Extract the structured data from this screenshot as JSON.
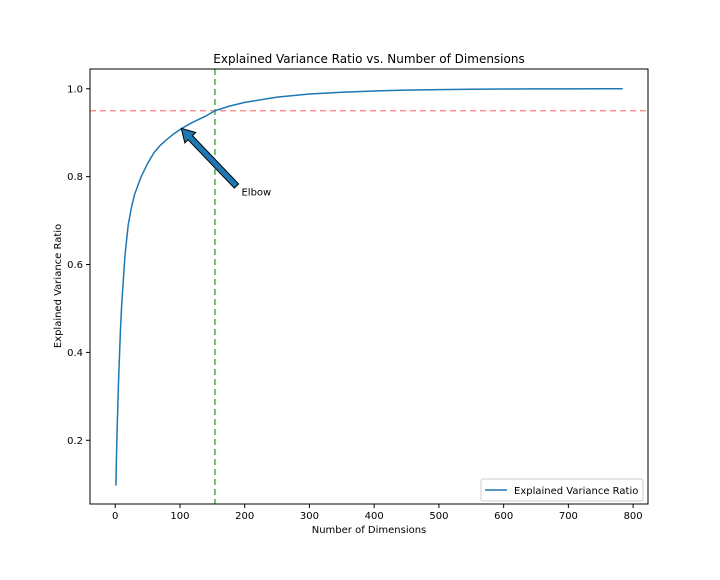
{
  "chart_data": {
    "type": "line",
    "title": "Explained Variance Ratio vs. Number of Dimensions",
    "xlabel": "Number of Dimensions",
    "ylabel": "Explained Variance Ratio",
    "xlim": [
      -39,
      823
    ],
    "ylim": [
      0.055,
      1.045
    ],
    "xticks": [
      0,
      100,
      200,
      300,
      400,
      500,
      600,
      700,
      800
    ],
    "yticks": [
      0.2,
      0.4,
      0.6,
      0.8,
      1.0
    ],
    "xtick_labels": [
      "0",
      "100",
      "200",
      "300",
      "400",
      "500",
      "600",
      "700",
      "800"
    ],
    "ytick_labels": [
      "0.2",
      "0.4",
      "0.6",
      "0.8",
      "1.0"
    ],
    "grid": false,
    "legend_position": "lower-right",
    "series": [
      {
        "name": "Explained Variance Ratio",
        "color": "#1f77b4",
        "x": [
          1,
          2,
          3,
          5,
          8,
          10,
          15,
          20,
          25,
          30,
          40,
          50,
          60,
          70,
          80,
          90,
          100,
          110,
          120,
          130,
          140,
          154,
          175,
          200,
          250,
          300,
          350,
          400,
          450,
          500,
          550,
          600,
          650,
          700,
          750,
          784
        ],
        "y": [
          0.097,
          0.168,
          0.23,
          0.33,
          0.45,
          0.51,
          0.62,
          0.69,
          0.73,
          0.76,
          0.8,
          0.83,
          0.855,
          0.872,
          0.885,
          0.897,
          0.907,
          0.916,
          0.924,
          0.931,
          0.938,
          0.95,
          0.96,
          0.969,
          0.981,
          0.988,
          0.992,
          0.995,
          0.997,
          0.998,
          0.999,
          0.9995,
          0.9998,
          0.9999,
          1.0,
          1.0
        ]
      }
    ],
    "reference_lines": [
      {
        "orientation": "horizontal",
        "value": 0.95,
        "color": "#ff7f7f",
        "style": "dashed"
      },
      {
        "orientation": "vertical",
        "value": 154,
        "color": "#2ca02c",
        "style": "dashed"
      }
    ],
    "annotation": {
      "text": "Elbow",
      "point": [
        102,
        0.91
      ],
      "text_position": [
        195,
        0.765
      ],
      "arrow_color": "#1f77b4"
    }
  }
}
